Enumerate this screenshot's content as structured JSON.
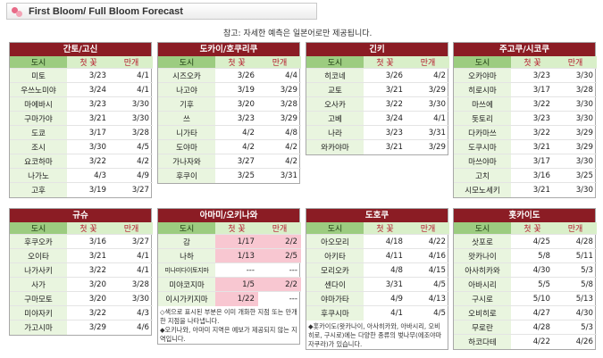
{
  "header": {
    "title": "First Bloom/ Full Bloom Forecast"
  },
  "note": "참고: 자세한 예측은 일본어로만 제공됩니다.",
  "columns": {
    "city": "도시",
    "first": "첫 꽃",
    "full": "만개"
  },
  "regions": [
    {
      "name": "간토/고신",
      "rows": [
        {
          "city": "미토",
          "first": "3/23",
          "full": "4/1"
        },
        {
          "city": "우쓰노미야",
          "first": "3/24",
          "full": "4/1"
        },
        {
          "city": "마에바시",
          "first": "3/23",
          "full": "3/30"
        },
        {
          "city": "구마가야",
          "first": "3/21",
          "full": "3/30"
        },
        {
          "city": "도쿄",
          "first": "3/17",
          "full": "3/28"
        },
        {
          "city": "조시",
          "first": "3/30",
          "full": "4/5"
        },
        {
          "city": "요코하마",
          "first": "3/22",
          "full": "4/2"
        },
        {
          "city": "나가노",
          "first": "4/3",
          "full": "4/9"
        },
        {
          "city": "고후",
          "first": "3/19",
          "full": "3/27"
        }
      ]
    },
    {
      "name": "도카이/호쿠리쿠",
      "rows": [
        {
          "city": "시즈오카",
          "first": "3/26",
          "full": "4/4"
        },
        {
          "city": "나고야",
          "first": "3/19",
          "full": "3/29"
        },
        {
          "city": "기후",
          "first": "3/20",
          "full": "3/28"
        },
        {
          "city": "쓰",
          "first": "3/23",
          "full": "3/29"
        },
        {
          "city": "니가타",
          "first": "4/2",
          "full": "4/8"
        },
        {
          "city": "도야마",
          "first": "4/2",
          "full": "4/2"
        },
        {
          "city": "가나자와",
          "first": "3/27",
          "full": "4/2"
        },
        {
          "city": "후쿠이",
          "first": "3/25",
          "full": "3/31"
        }
      ]
    },
    {
      "name": "긴키",
      "rows": [
        {
          "city": "히코네",
          "first": "3/26",
          "full": "4/2"
        },
        {
          "city": "교토",
          "first": "3/21",
          "full": "3/29"
        },
        {
          "city": "오사카",
          "first": "3/22",
          "full": "3/30"
        },
        {
          "city": "고베",
          "first": "3/24",
          "full": "4/1"
        },
        {
          "city": "나라",
          "first": "3/23",
          "full": "3/31"
        },
        {
          "city": "와카야마",
          "first": "3/21",
          "full": "3/29"
        }
      ]
    },
    {
      "name": "주고쿠/시코쿠",
      "rows": [
        {
          "city": "오카야마",
          "first": "3/23",
          "full": "3/30"
        },
        {
          "city": "히로시마",
          "first": "3/17",
          "full": "3/28"
        },
        {
          "city": "마쓰에",
          "first": "3/22",
          "full": "3/30"
        },
        {
          "city": "돗토리",
          "first": "3/23",
          "full": "3/30"
        },
        {
          "city": "다카마쓰",
          "first": "3/22",
          "full": "3/29"
        },
        {
          "city": "도쿠시마",
          "first": "3/21",
          "full": "3/29"
        },
        {
          "city": "마쓰야마",
          "first": "3/17",
          "full": "3/30"
        },
        {
          "city": "고치",
          "first": "3/16",
          "full": "3/25"
        },
        {
          "city": "시모노세키",
          "first": "3/21",
          "full": "3/30"
        }
      ]
    },
    {
      "name": "규슈",
      "rows": [
        {
          "city": "후쿠오카",
          "first": "3/16",
          "full": "3/27"
        },
        {
          "city": "오이타",
          "first": "3/21",
          "full": "4/1"
        },
        {
          "city": "나가사키",
          "first": "3/22",
          "full": "4/1"
        },
        {
          "city": "사가",
          "first": "3/20",
          "full": "3/28"
        },
        {
          "city": "구마모토",
          "first": "3/20",
          "full": "3/30"
        },
        {
          "city": "미야자키",
          "first": "3/22",
          "full": "4/3"
        },
        {
          "city": "가고시마",
          "first": "3/29",
          "full": "4/6"
        }
      ]
    },
    {
      "name": "아마미/오키나와",
      "rows": [
        {
          "city": "감",
          "first": "1/17",
          "full": "2/2",
          "hl": true
        },
        {
          "city": "나하",
          "first": "1/13",
          "full": "2/5",
          "hl": true
        },
        {
          "city": "미나미다이토지마",
          "first": "---",
          "full": "---",
          "small": true
        },
        {
          "city": "미야코지마",
          "first": "1/5",
          "full": "2/2",
          "hl": true
        },
        {
          "city": "이시가키지마",
          "first": "1/22",
          "full": "---",
          "hl": true
        }
      ],
      "footnote": "◇색으로 표시된 부분은 이미 개화한 지점 또는 만개한 지점을 나타냅니다.\n◆오키나와, 아마미 지역은 예보가 제공되지 않는 지역입니다."
    },
    {
      "name": "도호쿠",
      "rows": [
        {
          "city": "아오모리",
          "first": "4/18",
          "full": "4/22"
        },
        {
          "city": "아키타",
          "first": "4/11",
          "full": "4/16"
        },
        {
          "city": "모리오카",
          "first": "4/8",
          "full": "4/15"
        },
        {
          "city": "센다이",
          "first": "3/31",
          "full": "4/5"
        },
        {
          "city": "야마가타",
          "first": "4/9",
          "full": "4/13"
        },
        {
          "city": "후쿠시마",
          "first": "4/1",
          "full": "4/5"
        }
      ],
      "footnote": "◆홋카이도(왓카나이, 아사히카와, 아바시리, 오비히로, 구시로)에는 다양한 종류의 벚나무(에조야마자쿠라)가 있습니다."
    },
    {
      "name": "홋카이도",
      "rows": [
        {
          "city": "삿포로",
          "first": "4/25",
          "full": "4/28"
        },
        {
          "city": "왓카나이",
          "first": "5/8",
          "full": "5/11"
        },
        {
          "city": "아사히카와",
          "first": "4/30",
          "full": "5/3"
        },
        {
          "city": "아바시리",
          "first": "5/5",
          "full": "5/8"
        },
        {
          "city": "구시로",
          "first": "5/10",
          "full": "5/13"
        },
        {
          "city": "오비히로",
          "first": "4/27",
          "full": "4/30"
        },
        {
          "city": "무로란",
          "first": "4/28",
          "full": "5/3"
        },
        {
          "city": "하코다테",
          "first": "4/22",
          "full": "4/26"
        }
      ]
    }
  ],
  "colors": {
    "title_bar": "#8b1c24",
    "city_header": "#9ccc80",
    "bloomed_highlight": "#f8c7d1"
  },
  "icons": {
    "logo": "cherry-blossom-icon"
  }
}
